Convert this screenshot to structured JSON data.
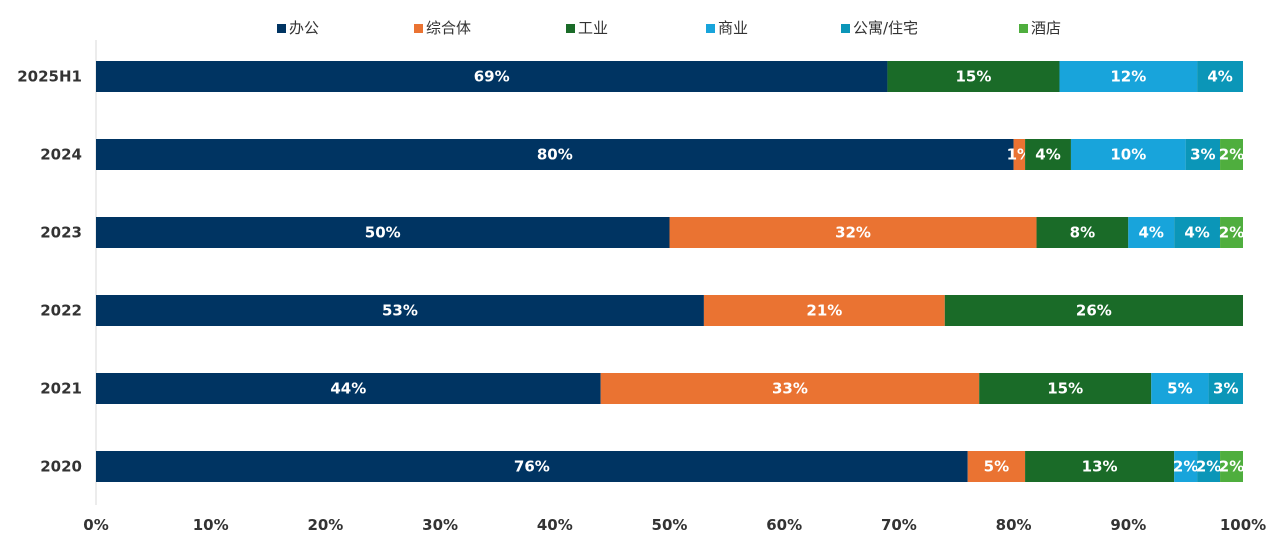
{
  "chart_data": {
    "type": "bar",
    "orientation": "horizontal",
    "stacked": true,
    "categories": [
      "2025H1",
      "2024",
      "2023",
      "2022",
      "2021",
      "2020"
    ],
    "series": [
      {
        "name": "办公",
        "color": "#003462",
        "values": [
          69,
          80,
          50,
          53,
          44,
          76
        ],
        "labels": [
          "69%",
          "80%",
          "50%",
          "53%",
          "44%",
          "76%"
        ]
      },
      {
        "name": "综合体",
        "color": "#EA7332",
        "values": [
          0,
          1,
          32,
          21,
          33,
          5
        ],
        "labels": [
          "",
          "1%",
          "32%",
          "21%",
          "33%",
          "5%"
        ]
      },
      {
        "name": "工业",
        "color": "#1A6B28",
        "values": [
          15,
          4,
          8,
          26,
          15,
          13
        ],
        "labels": [
          "15%",
          "4%",
          "8%",
          "26%",
          "15%",
          "13%"
        ]
      },
      {
        "name": "商业",
        "color": "#18A4DB",
        "values": [
          12,
          10,
          4,
          0,
          5,
          2
        ],
        "labels": [
          "12%",
          "10%",
          "4%",
          "",
          "5%",
          "2%"
        ]
      },
      {
        "name": "公寓/住宅",
        "color": "#0B96B8",
        "values": [
          4,
          3,
          4,
          0,
          3,
          2
        ],
        "labels": [
          "4%",
          "3%",
          "4%",
          "",
          "3%",
          "2%"
        ]
      },
      {
        "name": "酒店",
        "color": "#4FAE3E",
        "values": [
          0,
          2,
          2,
          0,
          0,
          2
        ],
        "labels": [
          "",
          "2%",
          "2%",
          "",
          "",
          "2%"
        ]
      }
    ],
    "x_ticks": [
      "0%",
      "10%",
      "20%",
      "30%",
      "40%",
      "50%",
      "60%",
      "70%",
      "80%",
      "90%",
      "100%"
    ],
    "xlim": [
      0,
      100
    ],
    "title": "",
    "xlabel": "",
    "ylabel": "",
    "grid": false,
    "legend_position": "top"
  }
}
